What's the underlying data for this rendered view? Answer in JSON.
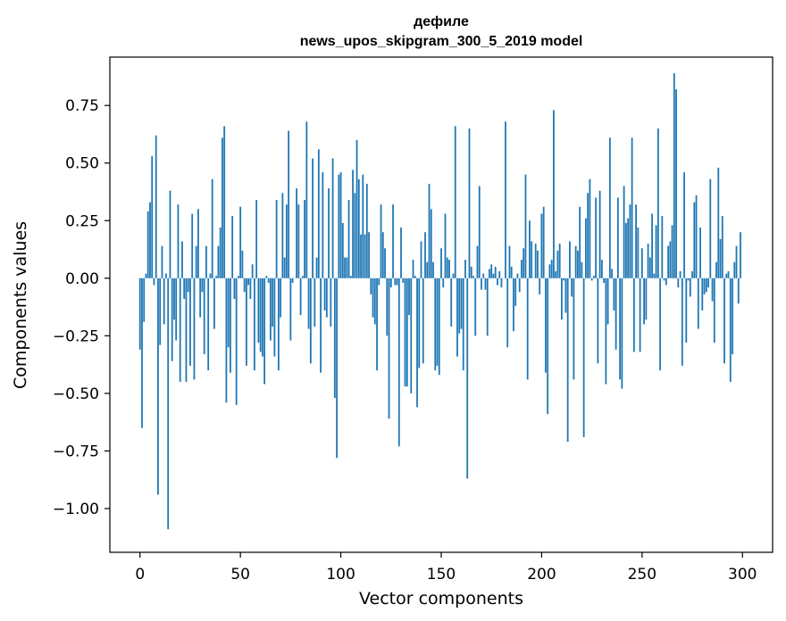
{
  "chart_data": {
    "type": "bar",
    "title": [
      "дефиле",
      "news_upos_skipgram_300_5_2019 model"
    ],
    "xlabel": "Vector components",
    "ylabel": "Components values",
    "xlim": [
      -15,
      315
    ],
    "ylim": [
      -1.19,
      0.96
    ],
    "xticks": [
      0,
      50,
      100,
      150,
      200,
      250,
      300
    ],
    "yticks": [
      -1.0,
      -0.75,
      -0.5,
      -0.25,
      0.0,
      0.25,
      0.5,
      0.75
    ],
    "ytick_labels": [
      "−1.00",
      "−0.75",
      "−0.50",
      "−0.25",
      "0.00",
      "0.25",
      "0.50",
      "0.75"
    ],
    "bar_color": "#1f77b4",
    "grid": false,
    "x": "0..299 (component index)",
    "values": [
      -0.31,
      -0.65,
      -0.19,
      0.02,
      0.29,
      0.33,
      0.53,
      -0.03,
      0.62,
      -0.94,
      -0.29,
      0.14,
      -0.2,
      0.02,
      -1.09,
      0.38,
      -0.36,
      -0.18,
      -0.27,
      0.32,
      -0.45,
      0.16,
      -0.09,
      -0.45,
      -0.06,
      -0.38,
      0.28,
      -0.44,
      0.14,
      0.3,
      -0.17,
      -0.06,
      -0.33,
      0.14,
      -0.4,
      0.02,
      0.43,
      -0.22,
      0.01,
      0.14,
      0.22,
      0.61,
      0.66,
      -0.54,
      -0.3,
      -0.41,
      0.27,
      -0.09,
      -0.55,
      0.01,
      0.31,
      0.12,
      -0.06,
      -0.38,
      -0.03,
      -0.09,
      0.06,
      -0.4,
      0.34,
      -0.28,
      -0.32,
      -0.34,
      -0.46,
      0.01,
      -0.02,
      -0.27,
      -0.21,
      -0.34,
      0.34,
      -0.4,
      -0.17,
      0.37,
      0.09,
      0.32,
      0.64,
      -0.27,
      -0.02,
      0.0,
      0.39,
      0.32,
      -0.16,
      0.01,
      0.34,
      0.68,
      -0.22,
      -0.37,
      0.52,
      -0.21,
      0.09,
      0.56,
      -0.41,
      0.46,
      -0.14,
      -0.17,
      0.39,
      -0.21,
      0.52,
      -0.52,
      -0.78,
      0.45,
      0.46,
      0.24,
      0.09,
      0.09,
      0.34,
      0.01,
      0.47,
      0.37,
      0.6,
      0.43,
      0.19,
      0.45,
      0.19,
      0.41,
      0.2,
      -0.07,
      -0.17,
      -0.2,
      -0.4,
      -0.03,
      0.32,
      0.2,
      0.13,
      -0.25,
      -0.61,
      -0.04,
      0.32,
      -0.03,
      -0.03,
      -0.73,
      0.22,
      -0.02,
      -0.47,
      -0.47,
      -0.16,
      -0.5,
      0.08,
      0.01,
      -0.56,
      -0.39,
      0.16,
      -0.37,
      0.2,
      0.07,
      0.41,
      0.3,
      0.07,
      -0.4,
      -0.38,
      -0.42,
      0.13,
      -0.04,
      0.28,
      0.09,
      0.08,
      -0.21,
      0.02,
      0.66,
      -0.34,
      -0.24,
      -0.22,
      -0.4,
      0.08,
      -0.87,
      0.65,
      0.05,
      0.01,
      -0.25,
      0.14,
      0.4,
      -0.05,
      0.02,
      -0.05,
      -0.25,
      0.04,
      0.06,
      0.02,
      0.05,
      -0.03,
      0.03,
      -0.04,
      0.0,
      0.68,
      -0.3,
      0.14,
      0.05,
      -0.23,
      -0.12,
      0.02,
      -0.06,
      0.08,
      0.13,
      0.45,
      -0.44,
      0.25,
      0.16,
      0.0,
      0.15,
      0.12,
      -0.07,
      0.28,
      0.31,
      -0.41,
      -0.59,
      0.06,
      0.08,
      0.73,
      0.03,
      0.12,
      0.15,
      -0.18,
      -0.01,
      -0.15,
      -0.71,
      0.16,
      -0.08,
      -0.44,
      0.14,
      0.12,
      0.31,
      0.07,
      -0.69,
      0.26,
      0.37,
      0.43,
      -0.01,
      0.01,
      0.35,
      -0.37,
      0.38,
      0.08,
      -0.02,
      -0.46,
      -0.2,
      0.61,
      0.04,
      -0.14,
      -0.31,
      0.35,
      -0.44,
      -0.48,
      0.4,
      0.24,
      0.26,
      0.32,
      0.61,
      -0.32,
      0.32,
      0.22,
      -0.32,
      0.13,
      -0.2,
      -0.18,
      0.15,
      0.09,
      0.28,
      0.02,
      0.23,
      0.65,
      -0.4,
      0.27,
      -0.01,
      -0.03,
      0.14,
      0.16,
      0.23,
      0.89,
      0.82,
      -0.04,
      0.03,
      -0.38,
      0.46,
      -0.28,
      -0.01,
      -0.08,
      0.03,
      0.33,
      0.36,
      -0.22,
      0.22,
      -0.14,
      -0.07,
      -0.06,
      -0.04,
      0.43,
      -0.1,
      -0.28,
      0.07,
      0.48,
      0.17,
      0.27,
      -0.37,
      0.02,
      0.03,
      -0.45,
      -0.33,
      0.07,
      0.14,
      -0.11,
      0.2
    ]
  }
}
